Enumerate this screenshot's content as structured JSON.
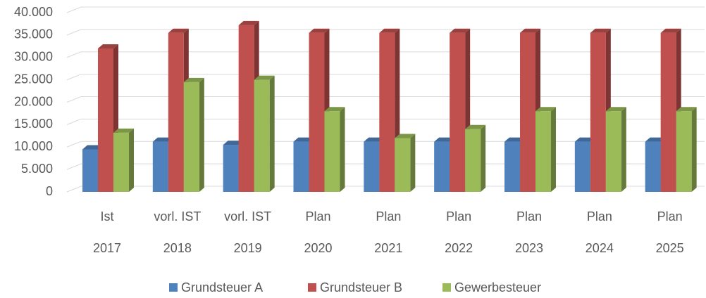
{
  "chart_data": {
    "type": "bar3d",
    "categories": [
      [
        "Ist",
        "2017"
      ],
      [
        "vorl. IST",
        "2018"
      ],
      [
        "vorl. IST",
        "2019"
      ],
      [
        "Plan",
        "2020"
      ],
      [
        "Plan",
        "2021"
      ],
      [
        "Plan",
        "2022"
      ],
      [
        "Plan",
        "2023"
      ],
      [
        "Plan",
        "2024"
      ],
      [
        "Plan",
        "2025"
      ]
    ],
    "series": [
      {
        "name": "Grundsteuer A",
        "color": "#4f81bd",
        "values": [
          9500,
          11200,
          10500,
          11200,
          11200,
          11200,
          11200,
          11200,
          11200
        ]
      },
      {
        "name": "Grundsteuer B",
        "color": "#c0504d",
        "values": [
          32000,
          35500,
          37200,
          35500,
          35500,
          35500,
          35500,
          35500,
          35500
        ]
      },
      {
        "name": "Gewerbesteuer",
        "color": "#9bbb59",
        "values": [
          13200,
          24500,
          25000,
          18000,
          12000,
          14000,
          18000,
          18000,
          18000
        ]
      }
    ],
    "ylim": [
      0,
      40000
    ],
    "yticks": [
      0,
      {
        "value": 5000,
        "label": "5.000"
      },
      {
        "value": 10000,
        "label": "10.000"
      },
      {
        "value": 15000,
        "label": "15.000"
      },
      {
        "value": 20000,
        "label": "20.000"
      },
      {
        "value": 25000,
        "label": "25.000"
      },
      {
        "value": 30000,
        "label": "30.000"
      },
      {
        "value": 35000,
        "label": "35.000"
      },
      {
        "value": 40000,
        "label": "40.000"
      }
    ],
    "grid": true,
    "legend": "bottom"
  }
}
